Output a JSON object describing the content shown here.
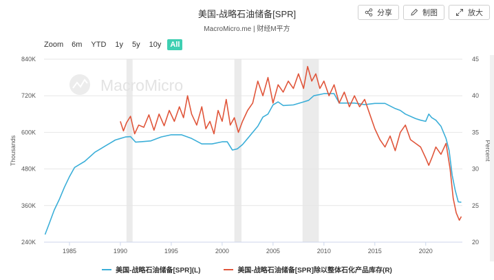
{
  "header": {
    "title": "美国-战略石油储备[SPR]",
    "subtitle": "MacroMicro.me | 财经M平方"
  },
  "actions": {
    "share_label": "分享",
    "draw_label": "制图",
    "expand_label": "放大"
  },
  "zoom": {
    "label": "Zoom",
    "options": [
      "6m",
      "YTD",
      "1y",
      "5y",
      "10y",
      "All"
    ],
    "active": "All"
  },
  "watermark": "MacroMicro",
  "colors": {
    "spr": "#3aaed8",
    "ratio": "#e0553a",
    "band": "#ebebeb",
    "accent": "#3ecfb2"
  },
  "chart_data": {
    "type": "line",
    "title": "美国-战略石油储备[SPR]",
    "ylabel_left": "Thousands",
    "ylabel_right": "Percent",
    "ylim_left": [
      240,
      840
    ],
    "ylim_right": [
      20,
      45
    ],
    "left_ticks": [
      "240K",
      "360K",
      "480K",
      "600K",
      "720K",
      "840K"
    ],
    "right_ticks": [
      "20",
      "25",
      "30",
      "35",
      "40",
      "45"
    ],
    "x_ticks": [
      "1985",
      "1990",
      "1995",
      "2000",
      "2005",
      "2010",
      "2015",
      "2020"
    ],
    "xlim": [
      1982.5,
      2023.6
    ],
    "recession_bands": [
      [
        1990.6,
        1991.2
      ],
      [
        2001.2,
        2001.9
      ],
      [
        2007.9,
        2009.5
      ]
    ],
    "grid": true,
    "legend_position": "bottom",
    "series": [
      {
        "name": "美国-战略石油储备[SPR](L)",
        "axis": "left",
        "x": [
          1982.6,
          1983.0,
          1983.5,
          1984.0,
          1984.5,
          1985.0,
          1985.5,
          1986.0,
          1986.5,
          1987.0,
          1987.5,
          1988.0,
          1988.5,
          1989.0,
          1989.5,
          1990.0,
          1990.5,
          1991.0,
          1991.5,
          1992.0,
          1993.0,
          1994.0,
          1995.0,
          1996.0,
          1997.0,
          1998.0,
          1999.0,
          2000.0,
          2000.5,
          2001.0,
          2001.5,
          2002.0,
          2002.5,
          2003.0,
          2003.5,
          2004.0,
          2004.5,
          2005.0,
          2005.5,
          2006.0,
          2007.0,
          2008.0,
          2008.5,
          2009.0,
          2010.0,
          2011.0,
          2011.5,
          2012.0,
          2013.0,
          2014.0,
          2015.0,
          2016.0,
          2017.0,
          2017.5,
          2018.0,
          2019.0,
          2019.5,
          2020.0,
          2020.3,
          2020.6,
          2021.0,
          2021.5,
          2022.0,
          2022.3,
          2022.6,
          2022.9,
          2023.2,
          2023.5
        ],
        "values": [
          265,
          300,
          345,
          380,
          420,
          455,
          485,
          495,
          505,
          520,
          535,
          545,
          555,
          565,
          575,
          580,
          585,
          586,
          568,
          569,
          572,
          585,
          592,
          592,
          580,
          562,
          562,
          569,
          569,
          542,
          546,
          560,
          580,
          600,
          620,
          650,
          660,
          690,
          700,
          688,
          690,
          700,
          705,
          720,
          727,
          727,
          696,
          696,
          696,
          691,
          695,
          695,
          678,
          672,
          660,
          645,
          640,
          636,
          660,
          648,
          640,
          620,
          580,
          540,
          460,
          410,
          372,
          371
        ]
      },
      {
        "name": "美国-战略石油储备[SPR]除以整体石化产品库存(R)",
        "axis": "right",
        "x": [
          1990.0,
          1990.3,
          1990.6,
          1991.0,
          1991.4,
          1991.8,
          1992.3,
          1992.8,
          1993.3,
          1993.8,
          1994.3,
          1994.8,
          1995.3,
          1995.8,
          1996.2,
          1996.6,
          1997.0,
          1997.5,
          1998.0,
          1998.4,
          1998.8,
          1999.2,
          1999.6,
          2000.0,
          2000.4,
          2000.8,
          2001.2,
          2001.6,
          2002.0,
          2002.5,
          2003.0,
          2003.5,
          2004.0,
          2004.5,
          2005.0,
          2005.5,
          2006.0,
          2006.5,
          2007.0,
          2007.5,
          2008.0,
          2008.4,
          2008.8,
          2009.2,
          2009.6,
          2010.0,
          2010.5,
          2011.0,
          2011.5,
          2012.0,
          2012.5,
          2013.0,
          2013.5,
          2014.0,
          2014.5,
          2015.0,
          2015.5,
          2016.0,
          2016.5,
          2017.0,
          2017.5,
          2018.0,
          2018.5,
          2019.0,
          2019.5,
          2020.0,
          2020.3,
          2020.6,
          2021.0,
          2021.5,
          2022.0,
          2022.4,
          2022.7,
          2023.0,
          2023.3,
          2023.5
        ],
        "values": [
          36.5,
          35.2,
          36.3,
          37.2,
          34.8,
          36.0,
          35.7,
          37.4,
          35.3,
          37.5,
          35.9,
          38.0,
          36.5,
          38.5,
          37.0,
          40.0,
          37.5,
          36.0,
          38.5,
          35.5,
          36.5,
          34.8,
          38.0,
          36.5,
          39.5,
          36.0,
          37.0,
          35.0,
          36.5,
          38.0,
          39.0,
          42.0,
          40.0,
          42.5,
          39.0,
          41.5,
          40.5,
          42.0,
          41.0,
          43.0,
          41.0,
          44.0,
          42.0,
          43.0,
          41.0,
          42.0,
          40.0,
          41.5,
          39.0,
          40.5,
          38.5,
          40.0,
          38.5,
          39.5,
          37.5,
          35.5,
          34.0,
          33.0,
          34.5,
          32.5,
          35.0,
          36.0,
          34.0,
          33.5,
          33.0,
          31.5,
          30.5,
          31.5,
          33.0,
          32.0,
          33.5,
          30.0,
          26.0,
          24.0,
          23.0,
          23.5
        ]
      }
    ]
  }
}
